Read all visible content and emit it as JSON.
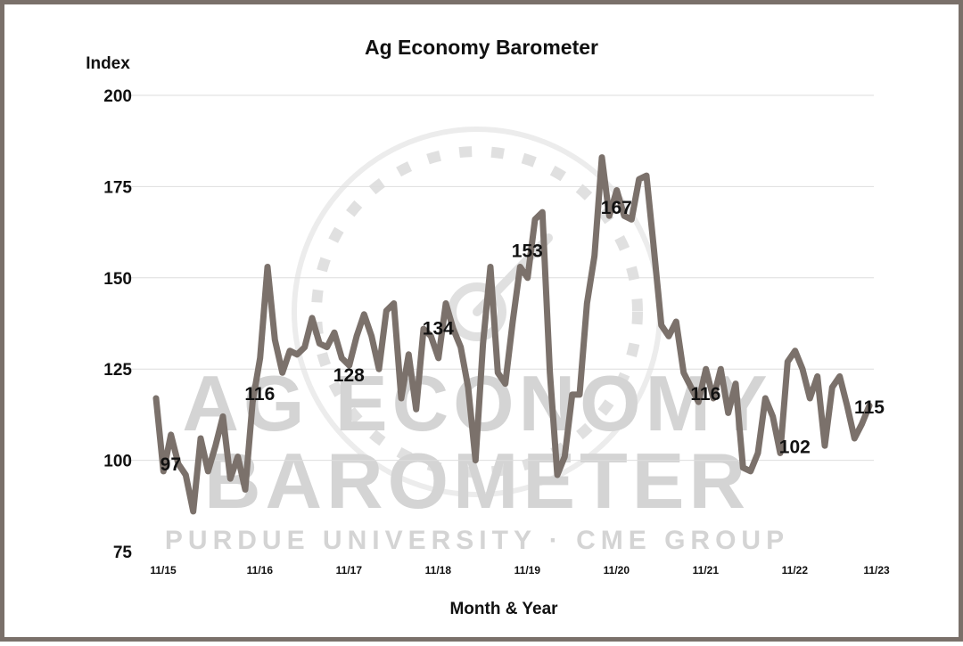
{
  "chart_data": {
    "type": "line",
    "title": "Ag Economy Barometer",
    "ylabel": "Index",
    "xlabel": "Month & Year",
    "ylim": [
      75,
      200
    ],
    "yticks": [
      75,
      100,
      125,
      150,
      175,
      200
    ],
    "grid": true,
    "xticks": [
      "11/15",
      "11/16",
      "11/17",
      "11/18",
      "11/19",
      "11/20",
      "11/21",
      "11/22",
      "11/23"
    ],
    "series": [
      {
        "values": [
          117,
          97,
          107,
          99,
          96,
          86,
          106,
          97,
          104,
          112,
          95,
          101,
          92,
          116,
          128,
          153,
          133,
          124,
          130,
          129,
          131,
          139,
          132,
          131,
          135,
          128,
          126,
          134,
          140,
          134,
          125,
          141,
          143,
          117,
          129,
          114,
          136,
          134,
          128,
          143,
          136,
          131,
          120,
          100,
          132,
          153,
          124,
          121,
          138,
          153,
          150,
          166,
          168,
          124,
          96,
          101,
          118,
          118,
          143,
          156,
          183,
          167,
          174,
          167,
          166,
          177,
          178,
          158,
          137,
          134,
          138,
          124,
          120,
          116,
          125,
          117,
          125,
          113,
          121,
          98,
          97,
          102,
          117,
          112,
          102,
          127,
          130,
          125,
          117,
          123,
          104,
          120,
          123,
          115,
          106,
          110,
          115
        ],
        "color": "#7b716b"
      }
    ],
    "annotations": [
      "97",
      "116",
      "128",
      "134",
      "153",
      "167",
      "116",
      "102",
      "115"
    ]
  },
  "watermark": {
    "line1": "AG ECONOMY",
    "line2": "BAROMETER",
    "line3": "PURDUE UNIVERSITY  ·  CME GROUP"
  }
}
